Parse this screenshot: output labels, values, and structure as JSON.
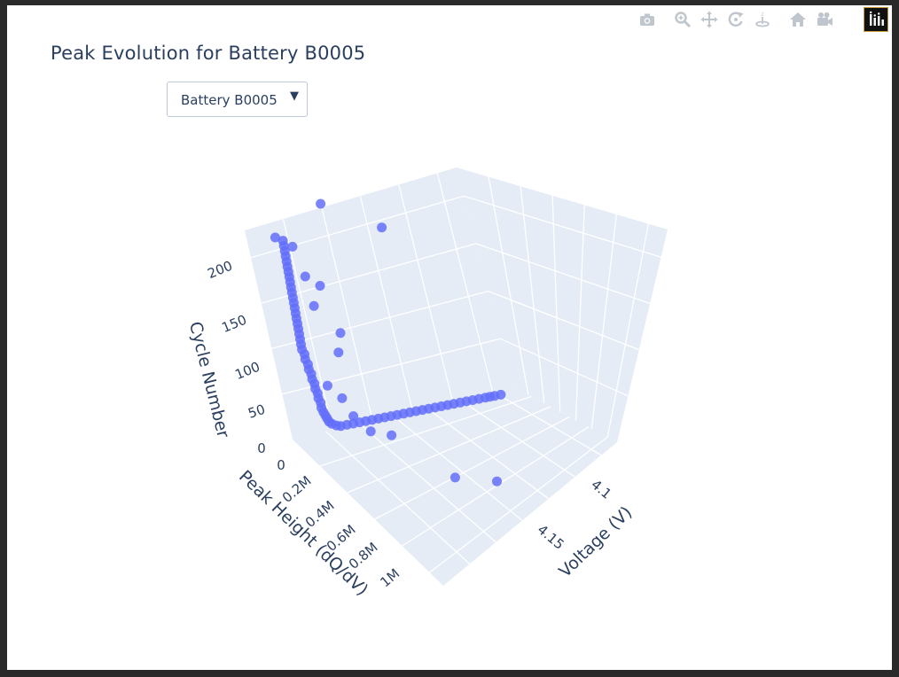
{
  "title": "Peak Evolution for Battery B0005",
  "dropdown": {
    "selected": "Battery B0005",
    "arrow": "▼"
  },
  "modebar": {
    "icons": [
      "camera-icon",
      "zoom-icon",
      "pan-icon",
      "orbit-rotation-icon",
      "turntable-rotation-icon",
      "home-icon",
      "camera-video-icon",
      "plotly-logo-icon"
    ]
  },
  "colors": {
    "marker": "#636efa",
    "scene_bg": "#e5ecf6",
    "grid": "#ffffff",
    "text": "#2a3f5f"
  },
  "chart_data": {
    "type": "scatter3d",
    "title": "Peak Evolution for Battery B0005",
    "axes": {
      "x": {
        "label": "Voltage (V)",
        "ticks": [
          "4.1",
          "4.15"
        ],
        "tick_values": [
          4.1,
          4.15
        ]
      },
      "y": {
        "label": "Peak Height (dQ/dV)",
        "ticks": [
          "0",
          "0.2M",
          "0.4M",
          "0.6M",
          "0.8M",
          "1M"
        ],
        "tick_values": [
          0,
          200000,
          400000,
          600000,
          800000,
          1000000
        ]
      },
      "z": {
        "label": "Cycle Number",
        "ticks": [
          "0",
          "50",
          "100",
          "150",
          "200"
        ],
        "tick_values": [
          0,
          50,
          100,
          150,
          200
        ]
      }
    },
    "ranges": {
      "x": [
        4.07,
        4.2
      ],
      "y": [
        0,
        1100000
      ],
      "z": [
        0,
        230
      ]
    },
    "grid": true,
    "series": [
      {
        "marker_color": "#636efa",
        "points": [
          {
            "x": 4.19,
            "y": 40000,
            "z": 1
          },
          {
            "x": 4.186,
            "y": 45000,
            "z": 2
          },
          {
            "x": 4.183,
            "y": 50000,
            "z": 3
          },
          {
            "x": 4.18,
            "y": 55000,
            "z": 4
          },
          {
            "x": 4.176,
            "y": 60000,
            "z": 5
          },
          {
            "x": 4.172,
            "y": 65000,
            "z": 6
          },
          {
            "x": 4.168,
            "y": 70000,
            "z": 7
          },
          {
            "x": 4.164,
            "y": 75000,
            "z": 8
          },
          {
            "x": 4.16,
            "y": 80000,
            "z": 9
          },
          {
            "x": 4.156,
            "y": 85000,
            "z": 10
          },
          {
            "x": 4.152,
            "y": 90000,
            "z": 11
          },
          {
            "x": 4.148,
            "y": 95000,
            "z": 12
          },
          {
            "x": 4.144,
            "y": 100000,
            "z": 13
          },
          {
            "x": 4.14,
            "y": 105000,
            "z": 14
          },
          {
            "x": 4.136,
            "y": 110000,
            "z": 15
          },
          {
            "x": 4.132,
            "y": 115000,
            "z": 16
          },
          {
            "x": 4.128,
            "y": 120000,
            "z": 17
          },
          {
            "x": 4.124,
            "y": 125000,
            "z": 18
          },
          {
            "x": 4.12,
            "y": 130000,
            "z": 19
          },
          {
            "x": 4.116,
            "y": 135000,
            "z": 20
          },
          {
            "x": 4.112,
            "y": 140000,
            "z": 21
          },
          {
            "x": 4.108,
            "y": 145000,
            "z": 22
          },
          {
            "x": 4.104,
            "y": 150000,
            "z": 23
          },
          {
            "x": 4.1,
            "y": 155000,
            "z": 24
          },
          {
            "x": 4.096,
            "y": 160000,
            "z": 25
          },
          {
            "x": 4.092,
            "y": 165000,
            "z": 26
          },
          {
            "x": 4.088,
            "y": 170000,
            "z": 27
          },
          {
            "x": 4.085,
            "y": 180000,
            "z": 30
          },
          {
            "x": 4.082,
            "y": 190000,
            "z": 34
          },
          {
            "x": 4.08,
            "y": 200000,
            "z": 38
          },
          {
            "x": 4.079,
            "y": 205000,
            "z": 42
          },
          {
            "x": 4.078,
            "y": 210000,
            "z": 46
          },
          {
            "x": 4.077,
            "y": 215000,
            "z": 50
          },
          {
            "x": 4.076,
            "y": 220000,
            "z": 55
          },
          {
            "x": 4.076,
            "y": 222000,
            "z": 60
          },
          {
            "x": 4.075,
            "y": 225000,
            "z": 65
          },
          {
            "x": 4.075,
            "y": 228000,
            "z": 70
          },
          {
            "x": 4.074,
            "y": 230000,
            "z": 75
          },
          {
            "x": 4.074,
            "y": 232000,
            "z": 80
          },
          {
            "x": 4.073,
            "y": 235000,
            "z": 85
          },
          {
            "x": 4.073,
            "y": 236000,
            "z": 90
          },
          {
            "x": 4.072,
            "y": 238000,
            "z": 95
          },
          {
            "x": 4.072,
            "y": 240000,
            "z": 100
          },
          {
            "x": 4.071,
            "y": 240000,
            "z": 105
          },
          {
            "x": 4.071,
            "y": 242000,
            "z": 110
          },
          {
            "x": 4.07,
            "y": 243000,
            "z": 115
          },
          {
            "x": 4.07,
            "y": 244000,
            "z": 120
          },
          {
            "x": 4.07,
            "y": 245000,
            "z": 125
          },
          {
            "x": 4.07,
            "y": 246000,
            "z": 130
          },
          {
            "x": 4.07,
            "y": 247000,
            "z": 135
          },
          {
            "x": 4.07,
            "y": 248000,
            "z": 140
          },
          {
            "x": 4.07,
            "y": 249000,
            "z": 145
          },
          {
            "x": 4.07,
            "y": 250000,
            "z": 150
          },
          {
            "x": 4.07,
            "y": 251000,
            "z": 155
          },
          {
            "x": 4.07,
            "y": 252000,
            "z": 160
          },
          {
            "x": 4.07,
            "y": 253000,
            "z": 165
          },
          {
            "x": 4.07,
            "y": 254000,
            "z": 170
          },
          {
            "x": 4.07,
            "y": 255000,
            "z": 175
          },
          {
            "x": 4.07,
            "y": 256000,
            "z": 180
          },
          {
            "x": 4.07,
            "y": 257000,
            "z": 185
          },
          {
            "x": 4.07,
            "y": 258000,
            "z": 190
          },
          {
            "x": 4.07,
            "y": 259000,
            "z": 195
          },
          {
            "x": 4.07,
            "y": 260000,
            "z": 200
          },
          {
            "x": 4.07,
            "y": 261000,
            "z": 205
          },
          {
            "x": 4.07,
            "y": 262000,
            "z": 210
          },
          {
            "x": 4.07,
            "y": 263000,
            "z": 215
          },
          {
            "x": 4.07,
            "y": 264000,
            "z": 220
          },
          {
            "x": 4.11,
            "y": 30000,
            "z": 210
          },
          {
            "x": 4.14,
            "y": 60000,
            "z": 180
          },
          {
            "x": 4.095,
            "y": 120000,
            "z": 150
          },
          {
            "x": 4.09,
            "y": 300000,
            "z": 130
          },
          {
            "x": 4.088,
            "y": 280000,
            "z": 110
          },
          {
            "x": 4.085,
            "y": 350000,
            "z": 60
          },
          {
            "x": 4.09,
            "y": 400000,
            "z": 50
          },
          {
            "x": 4.1,
            "y": 420000,
            "z": 45
          },
          {
            "x": 4.12,
            "y": 600000,
            "z": 20
          },
          {
            "x": 4.14,
            "y": 650000,
            "z": 15
          },
          {
            "x": 4.08,
            "y": 180000,
            "z": 200
          },
          {
            "x": 4.082,
            "y": 210000,
            "z": 175
          },
          {
            "x": 4.078,
            "y": 300000,
            "z": 160
          },
          {
            "x": 4.075,
            "y": 330000,
            "z": 90
          },
          {
            "x": 4.08,
            "y": 360000,
            "z": 80
          },
          {
            "x": 4.07,
            "y": 200000,
            "z": 215
          }
        ]
      }
    ]
  }
}
